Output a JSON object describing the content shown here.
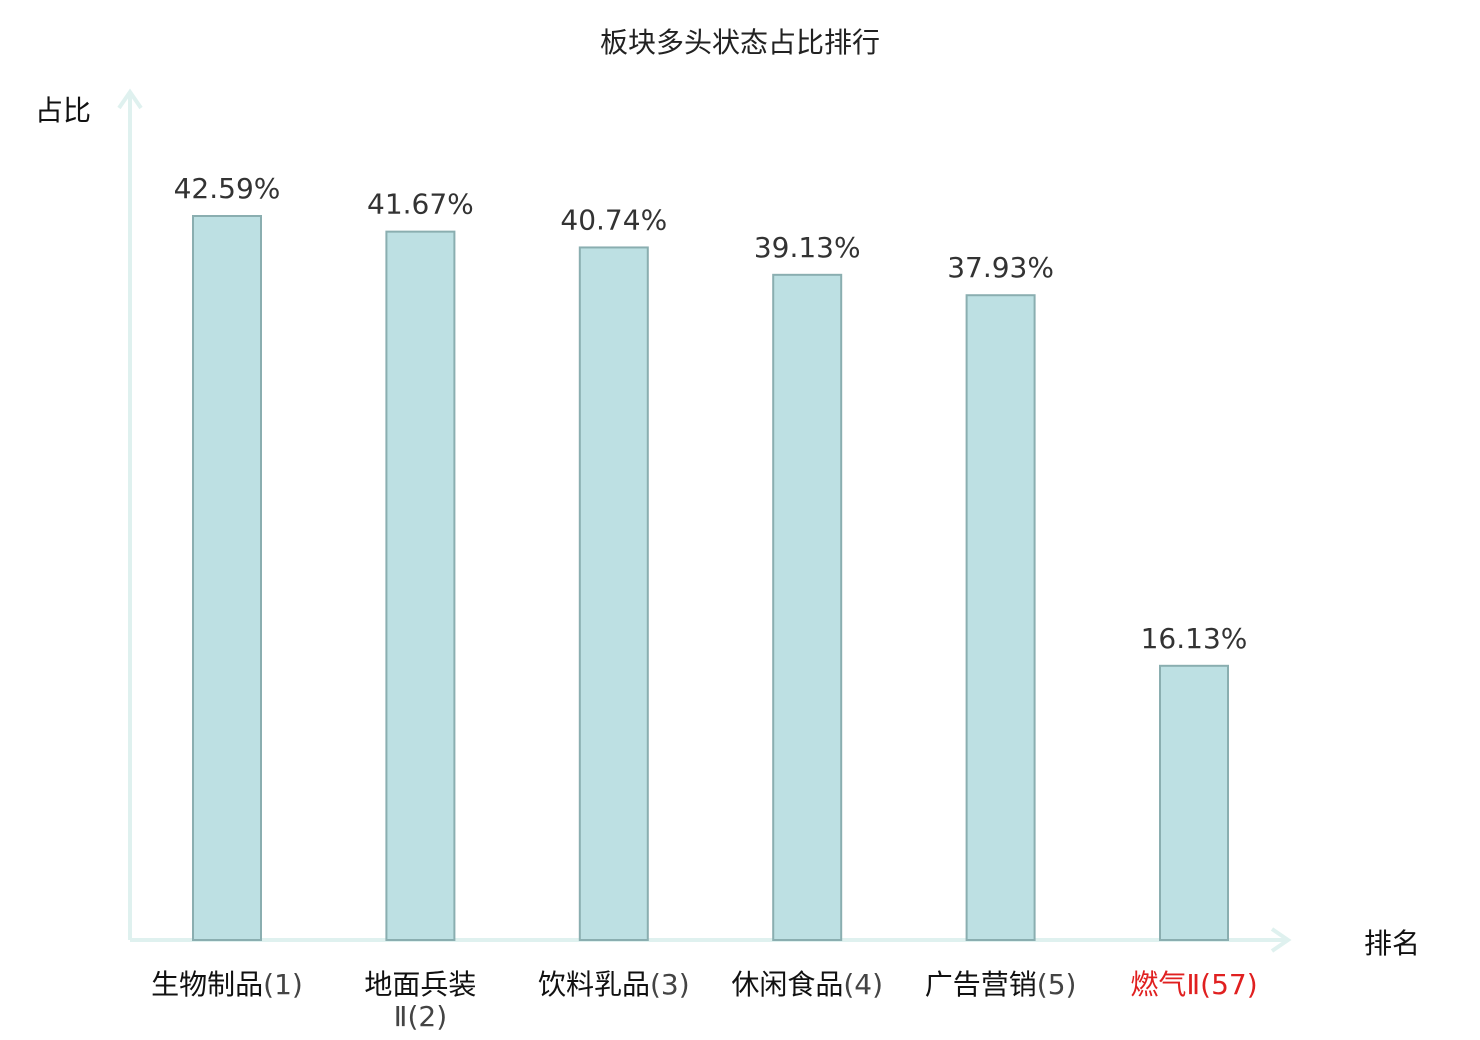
{
  "chart_data": {
    "type": "bar",
    "title": "板块多头状态占比排行",
    "ylabel": "占比",
    "xlabel": "排名",
    "categories": [
      {
        "name": "生物制品",
        "rank": "(1)",
        "highlight": false
      },
      {
        "name": "地面兵装",
        "rank": "Ⅱ(2)",
        "highlight": false
      },
      {
        "name": "饮料乳品",
        "rank": "(3)",
        "highlight": false
      },
      {
        "name": "休闲食品",
        "rank": "(4)",
        "highlight": false
      },
      {
        "name": "广告营销",
        "rank": "(5)",
        "highlight": false
      },
      {
        "name": "燃气Ⅱ",
        "rank": "(57)",
        "highlight": true
      }
    ],
    "values": [
      42.59,
      41.67,
      40.74,
      39.13,
      37.93,
      16.13
    ],
    "value_labels": [
      "42.59%",
      "41.67%",
      "40.74%",
      "39.13%",
      "37.93%",
      "16.13%"
    ],
    "ylim": [
      0,
      50
    ],
    "grid": false,
    "colors": {
      "bar_fill": "#bde0e3",
      "bar_stroke": "#8aaeb0",
      "axis": "#dff1ef",
      "highlight": "#e02020",
      "rank_text": "#444444"
    }
  }
}
